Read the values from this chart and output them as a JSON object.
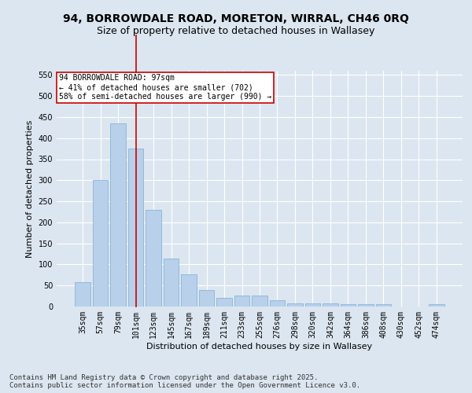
{
  "title": "94, BORROWDALE ROAD, MORETON, WIRRAL, CH46 0RQ",
  "subtitle": "Size of property relative to detached houses in Wallasey",
  "xlabel": "Distribution of detached houses by size in Wallasey",
  "ylabel": "Number of detached properties",
  "categories": [
    "35sqm",
    "57sqm",
    "79sqm",
    "101sqm",
    "123sqm",
    "145sqm",
    "167sqm",
    "189sqm",
    "211sqm",
    "233sqm",
    "255sqm",
    "276sqm",
    "298sqm",
    "320sqm",
    "342sqm",
    "364sqm",
    "386sqm",
    "408sqm",
    "430sqm",
    "452sqm",
    "474sqm"
  ],
  "values": [
    57,
    300,
    435,
    375,
    230,
    113,
    77,
    40,
    20,
    27,
    27,
    15,
    8,
    8,
    8,
    5,
    5,
    5,
    0,
    0,
    5
  ],
  "bar_color": "#b8d0ea",
  "bar_edgecolor": "#7aadd4",
  "line_x_index": 3,
  "line_color": "#cc0000",
  "annotation_text": "94 BORROWDALE ROAD: 97sqm\n← 41% of detached houses are smaller (702)\n58% of semi-detached houses are larger (990) →",
  "annotation_box_color": "white",
  "annotation_box_edgecolor": "#cc0000",
  "ylim": [
    0,
    560
  ],
  "yticks": [
    0,
    50,
    100,
    150,
    200,
    250,
    300,
    350,
    400,
    450,
    500,
    550
  ],
  "background_color": "#dce6f0",
  "grid_color": "white",
  "footer": "Contains HM Land Registry data © Crown copyright and database right 2025.\nContains public sector information licensed under the Open Government Licence v3.0.",
  "title_fontsize": 10,
  "subtitle_fontsize": 9,
  "axis_label_fontsize": 8,
  "tick_fontsize": 7,
  "footer_fontsize": 6.5
}
